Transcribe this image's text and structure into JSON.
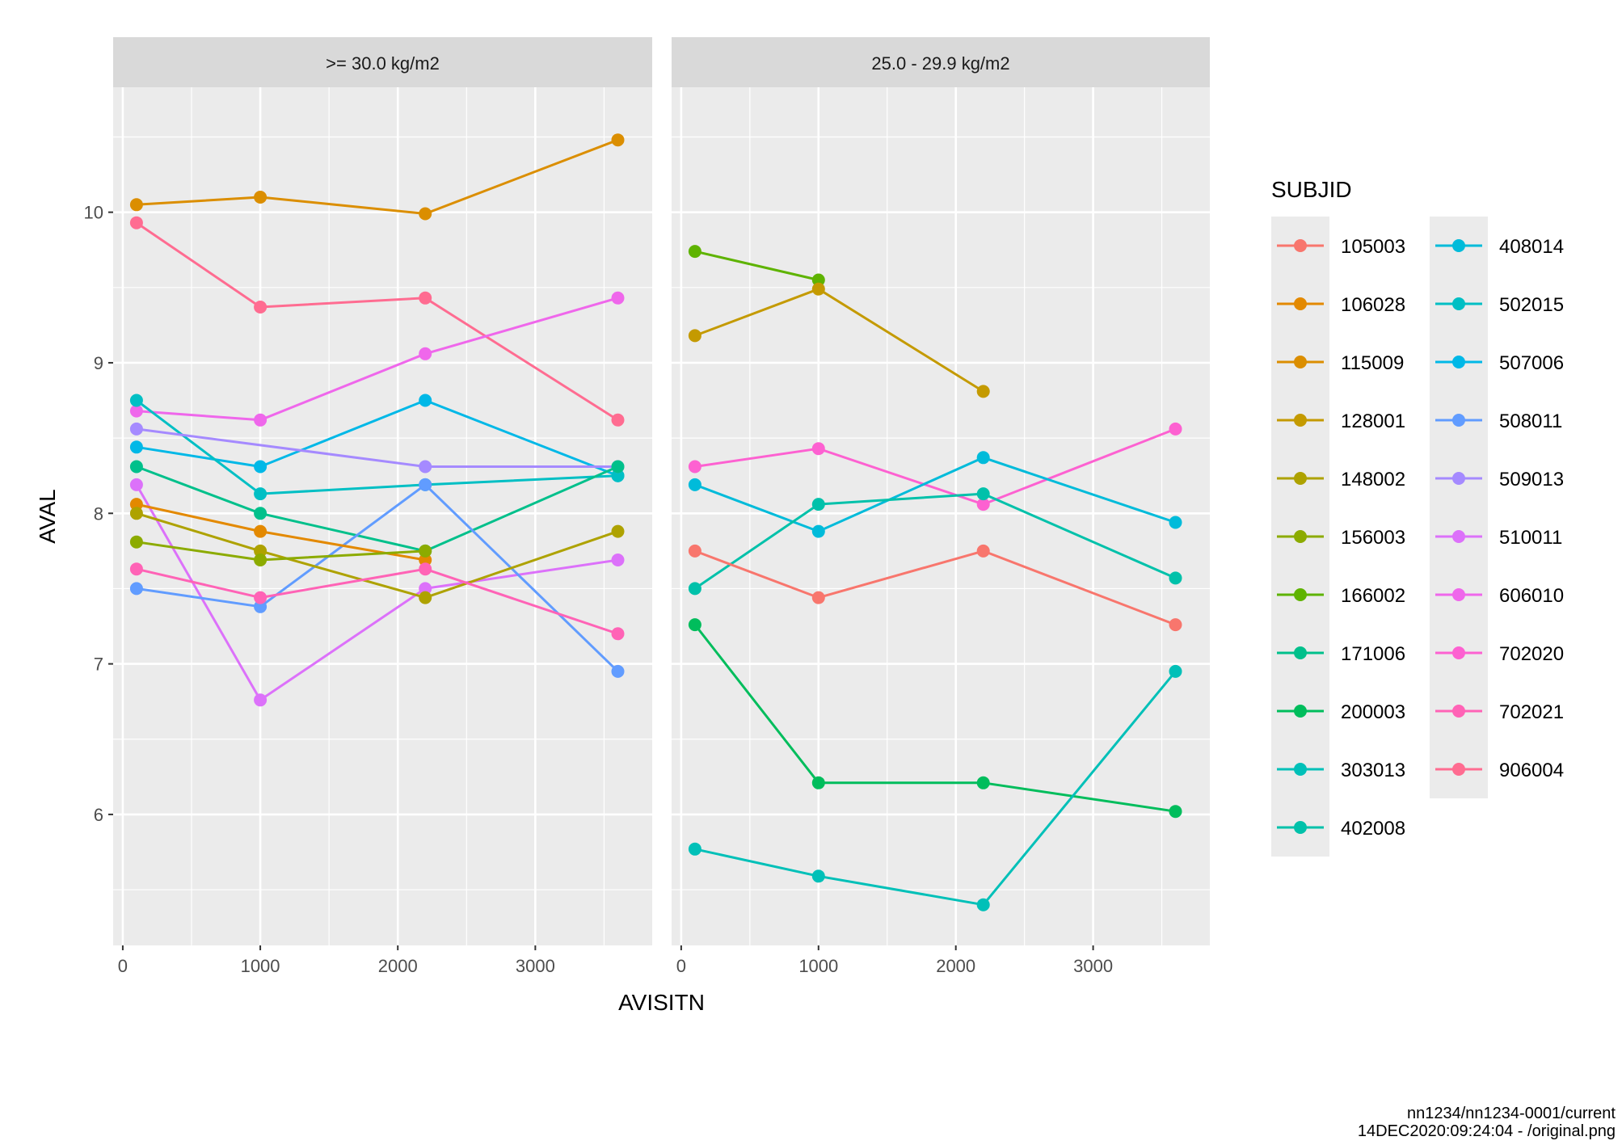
{
  "chart_data": {
    "type": "line",
    "xlabel": "AVISITN",
    "ylabel": "AVAL",
    "xlim": [
      -70,
      3850
    ],
    "ylim": [
      5.13,
      10.83
    ],
    "x_ticks": [
      0,
      1000,
      2000,
      3000
    ],
    "y_ticks": [
      6,
      7,
      8,
      9,
      10
    ],
    "grid": true,
    "legend": {
      "title": "SUBJID",
      "placement": "right",
      "columns": [
        [
          "105003",
          "106028",
          "115009",
          "128001",
          "148002",
          "156003",
          "166002",
          "171006",
          "200003",
          "303013",
          "402008"
        ],
        [
          "408014",
          "502015",
          "507006",
          "508011",
          "509013",
          "510011",
          "606010",
          "702020",
          "702021",
          "906004"
        ]
      ]
    },
    "panels": [
      {
        "label": ">= 30.0 kg/m2",
        "series": [
          {
            "name": "115009",
            "color": "#DB8E00",
            "points": [
              [
                100,
                10.05
              ],
              [
                1000,
                10.1
              ],
              [
                2200,
                9.99
              ],
              [
                3600,
                10.48
              ]
            ]
          },
          {
            "name": "906004",
            "color": "#FF6C91",
            "points": [
              [
                100,
                9.93
              ],
              [
                1000,
                9.37
              ],
              [
                2200,
                9.43
              ],
              [
                3600,
                8.62
              ]
            ]
          },
          {
            "name": "606010",
            "color": "#EF67EB",
            "points": [
              [
                100,
                8.68
              ],
              [
                1000,
                8.62
              ],
              [
                2200,
                9.06
              ],
              [
                3600,
                9.43
              ]
            ]
          },
          {
            "name": "507006",
            "color": "#00B8E7",
            "points": [
              [
                100,
                8.44
              ],
              [
                1000,
                8.31
              ],
              [
                2200,
                8.75
              ],
              [
                3600,
                8.25
              ]
            ]
          },
          {
            "name": "502015",
            "color": "#00BFC4",
            "points": [
              [
                100,
                8.75
              ],
              [
                1000,
                8.13
              ],
              [
                2200,
                8.19
              ],
              [
                3600,
                8.25
              ]
            ]
          },
          {
            "name": "509013",
            "color": "#A58AFF",
            "points": [
              [
                100,
                8.56
              ],
              [
                2200,
                8.31
              ],
              [
                3600,
                8.31
              ]
            ]
          },
          {
            "name": "171006",
            "color": "#00C08B",
            "points": [
              [
                100,
                8.31
              ],
              [
                1000,
                8.0
              ],
              [
                2200,
                7.75
              ],
              [
                3600,
                8.31
              ]
            ]
          },
          {
            "name": "510011",
            "color": "#DC71FA",
            "points": [
              [
                100,
                8.19
              ],
              [
                1000,
                6.76
              ],
              [
                2200,
                7.5
              ],
              [
                3600,
                7.69
              ]
            ]
          },
          {
            "name": "508011",
            "color": "#619CFF",
            "points": [
              [
                100,
                7.5
              ],
              [
                1000,
                7.38
              ],
              [
                2200,
                8.19
              ],
              [
                3600,
                6.95
              ]
            ]
          },
          {
            "name": "106028",
            "color": "#E38900",
            "points": [
              [
                100,
                8.06
              ],
              [
                1000,
                7.88
              ],
              [
                2200,
                7.69
              ]
            ]
          },
          {
            "name": "148002",
            "color": "#AEA200",
            "points": [
              [
                100,
                8.0
              ],
              [
                1000,
                7.75
              ],
              [
                2200,
                7.44
              ],
              [
                3600,
                7.88
              ]
            ]
          },
          {
            "name": "156003",
            "color": "#8CAB00",
            "points": [
              [
                100,
                7.81
              ],
              [
                1000,
                7.69
              ],
              [
                2200,
                7.75
              ]
            ]
          },
          {
            "name": "702021",
            "color": "#FF63B6",
            "points": [
              [
                100,
                7.63
              ],
              [
                1000,
                7.44
              ],
              [
                2200,
                7.63
              ],
              [
                3600,
                7.2
              ]
            ]
          }
        ]
      },
      {
        "label": "25.0 - 29.9 kg/m2",
        "series": [
          {
            "name": "166002",
            "color": "#5EB300",
            "points": [
              [
                100,
                9.74
              ],
              [
                1000,
                9.55
              ]
            ]
          },
          {
            "name": "128001",
            "color": "#C49A00",
            "points": [
              [
                100,
                9.18
              ],
              [
                1000,
                9.49
              ],
              [
                2200,
                8.81
              ]
            ]
          },
          {
            "name": "702020",
            "color": "#FD61D1",
            "points": [
              [
                100,
                8.31
              ],
              [
                1000,
                8.43
              ],
              [
                2200,
                8.06
              ],
              [
                3600,
                8.56
              ]
            ]
          },
          {
            "name": "408014",
            "color": "#00BBDA",
            "points": [
              [
                100,
                8.19
              ],
              [
                1000,
                7.88
              ],
              [
                2200,
                8.37
              ],
              [
                3600,
                7.94
              ]
            ]
          },
          {
            "name": "402008",
            "color": "#00C1AA",
            "points": [
              [
                100,
                7.5
              ],
              [
                1000,
                8.06
              ],
              [
                2200,
                8.13
              ],
              [
                3600,
                7.57
              ]
            ]
          },
          {
            "name": "105003",
            "color": "#F8766D",
            "points": [
              [
                100,
                7.75
              ],
              [
                1000,
                7.44
              ],
              [
                2200,
                7.75
              ],
              [
                3600,
                7.26
              ]
            ]
          },
          {
            "name": "200003",
            "color": "#00BD5C",
            "points": [
              [
                100,
                7.26
              ],
              [
                1000,
                6.21
              ],
              [
                2200,
                6.21
              ],
              [
                3600,
                6.02
              ]
            ]
          },
          {
            "name": "303013",
            "color": "#00C0B8",
            "points": [
              [
                100,
                5.77
              ],
              [
                1000,
                5.59
              ],
              [
                2200,
                5.4
              ],
              [
                3600,
                6.95
              ]
            ]
          }
        ]
      }
    ],
    "colors": {
      "105003": "#F8766D",
      "106028": "#E38900",
      "115009": "#DB8E00",
      "128001": "#C49A00",
      "148002": "#AEA200",
      "156003": "#8CAB00",
      "166002": "#5EB300",
      "171006": "#00C08B",
      "200003": "#00BD5C",
      "303013": "#00C0B8",
      "402008": "#00C1AA",
      "408014": "#00BBDA",
      "502015": "#00BFC4",
      "507006": "#00B8E7",
      "508011": "#619CFF",
      "509013": "#A58AFF",
      "510011": "#DC71FA",
      "606010": "#EF67EB",
      "702020": "#FD61D1",
      "702021": "#FF63B6",
      "906004": "#FF6C91"
    }
  },
  "footer": {
    "line1": "nn1234/nn1234-0001/current",
    "line2": "14DEC2020:09:24:04 - /original.png"
  }
}
